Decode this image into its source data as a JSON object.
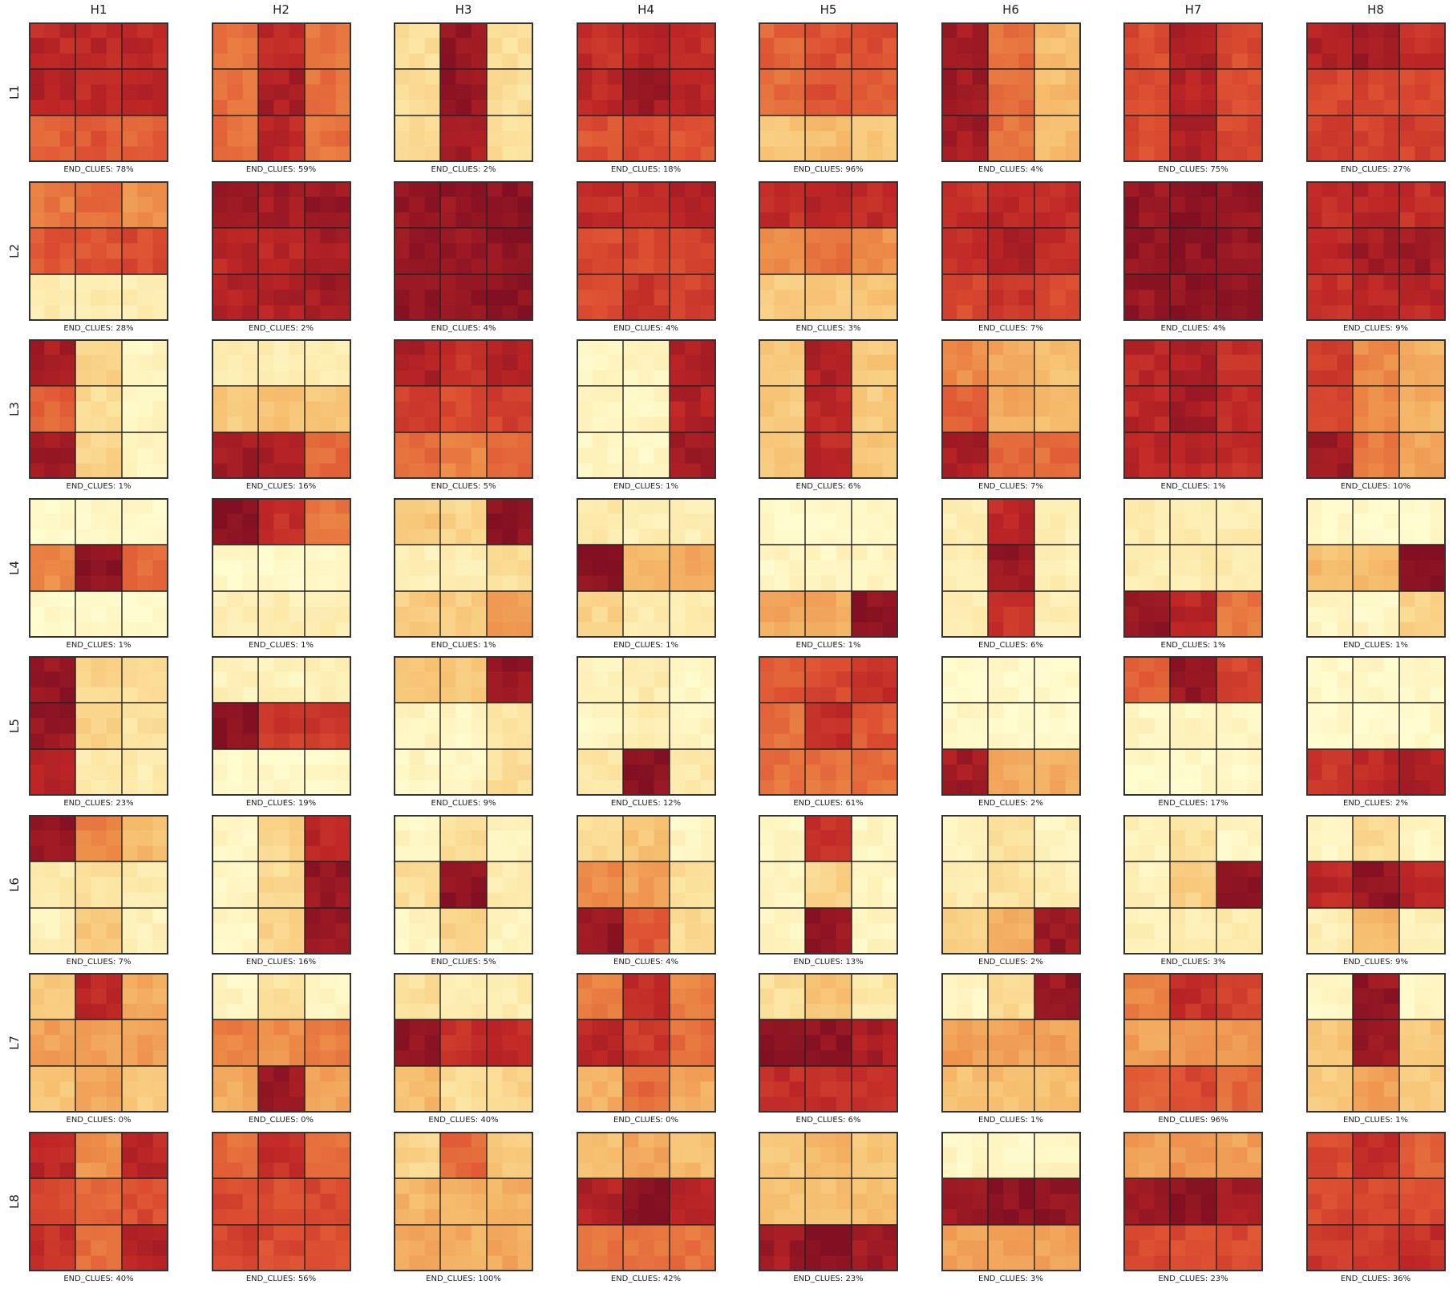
{
  "chart_data": {
    "type": "heatmap",
    "columns": [
      "H1",
      "H2",
      "H3",
      "H4",
      "H5",
      "H6",
      "H7",
      "H8"
    ],
    "rows": [
      "L1",
      "L2",
      "L3",
      "L4",
      "L5",
      "L6",
      "L7",
      "L8"
    ],
    "caption_label": "END_CLUES:",
    "caption_values": [
      [
        "78%",
        "59%",
        "2%",
        "18%",
        "96%",
        "4%",
        "75%",
        "27%"
      ],
      [
        "28%",
        "2%",
        "4%",
        "4%",
        "3%",
        "7%",
        "4%",
        "9%"
      ],
      [
        "1%",
        "16%",
        "5%",
        "1%",
        "6%",
        "7%",
        "1%",
        "10%"
      ],
      [
        "1%",
        "1%",
        "1%",
        "1%",
        "1%",
        "6%",
        "1%",
        "1%"
      ],
      [
        "23%",
        "19%",
        "9%",
        "12%",
        "61%",
        "2%",
        "17%",
        "2%"
      ],
      [
        "7%",
        "16%",
        "5%",
        "4%",
        "13%",
        "2%",
        "3%",
        "9%"
      ],
      [
        "0%",
        "0%",
        "40%",
        "0%",
        "6%",
        "1%",
        "96%",
        "1%"
      ],
      [
        "40%",
        "56%",
        "100%",
        "42%",
        "23%",
        "3%",
        "23%",
        "36%"
      ]
    ],
    "cell_grid": "9x9 cells per panel, divided into 3x3 blocks",
    "colormap": "YlOrRd (light yellow = low, dark red = high)",
    "block_intensity": [
      [
        [
          [
            0.85,
            0.85,
            0.85
          ],
          [
            0.88,
            0.85,
            0.85
          ],
          [
            0.65,
            0.68,
            0.65
          ]
        ],
        [
          [
            0.6,
            0.85,
            0.6
          ],
          [
            0.6,
            0.9,
            0.6
          ],
          [
            0.6,
            0.85,
            0.6
          ]
        ],
        [
          [
            0.2,
            0.95,
            0.2
          ],
          [
            0.2,
            0.95,
            0.2
          ],
          [
            0.2,
            0.9,
            0.2
          ]
        ],
        [
          [
            0.82,
            0.85,
            0.82
          ],
          [
            0.85,
            0.92,
            0.85
          ],
          [
            0.7,
            0.72,
            0.7
          ]
        ],
        [
          [
            0.65,
            0.7,
            0.7
          ],
          [
            0.62,
            0.7,
            0.65
          ],
          [
            0.3,
            0.35,
            0.3
          ]
        ],
        [
          [
            0.92,
            0.6,
            0.35
          ],
          [
            0.92,
            0.6,
            0.35
          ],
          [
            0.92,
            0.6,
            0.35
          ]
        ],
        [
          [
            0.72,
            0.88,
            0.72
          ],
          [
            0.72,
            0.88,
            0.72
          ],
          [
            0.72,
            0.88,
            0.72
          ]
        ],
        [
          [
            0.88,
            0.92,
            0.82
          ],
          [
            0.72,
            0.75,
            0.72
          ],
          [
            0.75,
            0.75,
            0.75
          ]
        ]
      ],
      [
        [
          [
            0.58,
            0.62,
            0.5
          ],
          [
            0.68,
            0.7,
            0.72
          ],
          [
            0.12,
            0.12,
            0.12
          ]
        ],
        [
          [
            0.92,
            0.92,
            0.95
          ],
          [
            0.85,
            0.85,
            0.9
          ],
          [
            0.88,
            0.88,
            0.92
          ]
        ],
        [
          [
            0.95,
            0.95,
            0.97
          ],
          [
            0.95,
            0.95,
            0.97
          ],
          [
            0.95,
            0.95,
            0.97
          ]
        ],
        [
          [
            0.82,
            0.82,
            0.88
          ],
          [
            0.72,
            0.72,
            0.75
          ],
          [
            0.72,
            0.78,
            0.75
          ]
        ],
        [
          [
            0.82,
            0.85,
            0.82
          ],
          [
            0.52,
            0.6,
            0.5
          ],
          [
            0.28,
            0.3,
            0.32
          ]
        ],
        [
          [
            0.82,
            0.85,
            0.82
          ],
          [
            0.82,
            0.88,
            0.82
          ],
          [
            0.72,
            0.8,
            0.72
          ]
        ],
        [
          [
            0.95,
            0.97,
            0.95
          ],
          [
            0.95,
            0.97,
            0.95
          ],
          [
            0.95,
            0.97,
            0.95
          ]
        ],
        [
          [
            0.82,
            0.85,
            0.82
          ],
          [
            0.85,
            0.92,
            0.92
          ],
          [
            0.82,
            0.85,
            0.85
          ]
        ]
      ],
      [
        [
          [
            0.9,
            0.25,
            0.05
          ],
          [
            0.65,
            0.22,
            0.05
          ],
          [
            0.92,
            0.25,
            0.05
          ]
        ],
        [
          [
            0.12,
            0.12,
            0.12
          ],
          [
            0.3,
            0.32,
            0.3
          ],
          [
            0.92,
            0.88,
            0.62
          ]
        ],
        [
          [
            0.88,
            0.82,
            0.88
          ],
          [
            0.75,
            0.72,
            0.75
          ],
          [
            0.62,
            0.55,
            0.62
          ]
        ],
        [
          [
            0.05,
            0.05,
            0.88
          ],
          [
            0.05,
            0.05,
            0.88
          ],
          [
            0.05,
            0.05,
            0.92
          ]
        ],
        [
          [
            0.3,
            0.88,
            0.3
          ],
          [
            0.3,
            0.85,
            0.3
          ],
          [
            0.3,
            0.85,
            0.3
          ]
        ],
        [
          [
            0.52,
            0.42,
            0.35
          ],
          [
            0.65,
            0.42,
            0.35
          ],
          [
            0.9,
            0.62,
            0.62
          ]
        ],
        [
          [
            0.85,
            0.88,
            0.82
          ],
          [
            0.85,
            0.92,
            0.82
          ],
          [
            0.85,
            0.85,
            0.82
          ]
        ],
        [
          [
            0.78,
            0.52,
            0.4
          ],
          [
            0.72,
            0.52,
            0.4
          ],
          [
            0.92,
            0.58,
            0.42
          ]
        ]
      ],
      [
        [
          [
            0.02,
            0.02,
            0.02
          ],
          [
            0.52,
            0.98,
            0.62
          ],
          [
            0.02,
            0.02,
            0.02
          ]
        ],
        [
          [
            0.98,
            0.82,
            0.58
          ],
          [
            0.02,
            0.02,
            0.02
          ],
          [
            0.1,
            0.1,
            0.12
          ]
        ],
        [
          [
            0.3,
            0.25,
            0.98
          ],
          [
            0.1,
            0.1,
            0.2
          ],
          [
            0.28,
            0.28,
            0.45
          ]
        ],
        [
          [
            0.15,
            0.1,
            0.1
          ],
          [
            0.98,
            0.35,
            0.42
          ],
          [
            0.25,
            0.12,
            0.12
          ]
        ],
        [
          [
            0.02,
            0.02,
            0.02
          ],
          [
            0.05,
            0.05,
            0.05
          ],
          [
            0.42,
            0.42,
            0.98
          ]
        ],
        [
          [
            0.1,
            0.85,
            0.1
          ],
          [
            0.1,
            0.95,
            0.1
          ],
          [
            0.1,
            0.8,
            0.1
          ]
        ],
        [
          [
            0.12,
            0.12,
            0.12
          ],
          [
            0.12,
            0.12,
            0.12
          ],
          [
            0.95,
            0.85,
            0.58
          ]
        ],
        [
          [
            0.02,
            0.02,
            0.02
          ],
          [
            0.35,
            0.35,
            0.98
          ],
          [
            0.05,
            0.05,
            0.25
          ]
        ]
      ],
      [
        [
          [
            0.95,
            0.25,
            0.2
          ],
          [
            0.95,
            0.25,
            0.18
          ],
          [
            0.85,
            0.12,
            0.12
          ]
        ],
        [
          [
            0.08,
            0.08,
            0.08
          ],
          [
            0.98,
            0.78,
            0.78
          ],
          [
            0.02,
            0.02,
            0.02
          ]
        ],
        [
          [
            0.3,
            0.3,
            0.95
          ],
          [
            0.05,
            0.05,
            0.15
          ],
          [
            0.05,
            0.05,
            0.2
          ]
        ],
        [
          [
            0.05,
            0.12,
            0.05
          ],
          [
            0.05,
            0.12,
            0.05
          ],
          [
            0.15,
            0.98,
            0.15
          ]
        ],
        [
          [
            0.68,
            0.72,
            0.82
          ],
          [
            0.6,
            0.82,
            0.68
          ],
          [
            0.6,
            0.6,
            0.6
          ]
        ],
        [
          [
            0.02,
            0.02,
            0.02
          ],
          [
            0.02,
            0.02,
            0.02
          ],
          [
            0.92,
            0.42,
            0.4
          ]
        ],
        [
          [
            0.65,
            0.95,
            0.75
          ],
          [
            0.05,
            0.05,
            0.05
          ],
          [
            0.02,
            0.02,
            0.02
          ]
        ],
        [
          [
            0.02,
            0.02,
            0.02
          ],
          [
            0.02,
            0.02,
            0.02
          ],
          [
            0.78,
            0.85,
            0.9
          ]
        ]
      ],
      [
        [
          [
            0.95,
            0.55,
            0.35
          ],
          [
            0.12,
            0.18,
            0.12
          ],
          [
            0.08,
            0.3,
            0.08
          ]
        ],
        [
          [
            0.05,
            0.25,
            0.85
          ],
          [
            0.05,
            0.22,
            0.95
          ],
          [
            0.05,
            0.25,
            0.95
          ]
        ],
        [
          [
            0.05,
            0.2,
            0.05
          ],
          [
            0.2,
            0.98,
            0.12
          ],
          [
            0.05,
            0.25,
            0.05
          ]
        ],
        [
          [
            0.22,
            0.32,
            0.05
          ],
          [
            0.52,
            0.45,
            0.2
          ],
          [
            0.95,
            0.68,
            0.22
          ]
        ],
        [
          [
            0.05,
            0.82,
            0.05
          ],
          [
            0.05,
            0.25,
            0.05
          ],
          [
            0.05,
            0.95,
            0.05
          ]
        ],
        [
          [
            0.05,
            0.18,
            0.05
          ],
          [
            0.12,
            0.18,
            0.1
          ],
          [
            0.25,
            0.42,
            0.95
          ]
        ],
        [
          [
            0.08,
            0.18,
            0.05
          ],
          [
            0.08,
            0.28,
            0.98
          ],
          [
            0.08,
            0.12,
            0.12
          ]
        ],
        [
          [
            0.05,
            0.22,
            0.05
          ],
          [
            0.85,
            0.95,
            0.85
          ],
          [
            0.1,
            0.38,
            0.1
          ]
        ]
      ],
      [
        [
          [
            0.28,
            0.85,
            0.42
          ],
          [
            0.45,
            0.45,
            0.45
          ],
          [
            0.3,
            0.42,
            0.3
          ]
        ],
        [
          [
            0.05,
            0.18,
            0.05
          ],
          [
            0.55,
            0.5,
            0.55
          ],
          [
            0.42,
            0.95,
            0.45
          ]
        ],
        [
          [
            0.2,
            0.12,
            0.12
          ],
          [
            0.95,
            0.82,
            0.85
          ],
          [
            0.35,
            0.2,
            0.25
          ]
        ],
        [
          [
            0.55,
            0.82,
            0.55
          ],
          [
            0.85,
            0.78,
            0.6
          ],
          [
            0.4,
            0.62,
            0.42
          ]
        ],
        [
          [
            0.2,
            0.32,
            0.15
          ],
          [
            0.98,
            0.98,
            0.9
          ],
          [
            0.82,
            0.82,
            0.8
          ]
        ],
        [
          [
            0.05,
            0.22,
            0.95
          ],
          [
            0.45,
            0.45,
            0.45
          ],
          [
            0.35,
            0.35,
            0.35
          ]
        ],
        [
          [
            0.55,
            0.82,
            0.75
          ],
          [
            0.45,
            0.5,
            0.5
          ],
          [
            0.65,
            0.72,
            0.62
          ]
        ],
        [
          [
            0.05,
            0.95,
            0.05
          ],
          [
            0.3,
            0.95,
            0.3
          ],
          [
            0.3,
            0.45,
            0.3
          ]
        ]
      ],
      [
        [
          [
            0.85,
            0.5,
            0.85
          ],
          [
            0.72,
            0.65,
            0.72
          ],
          [
            0.82,
            0.6,
            0.88
          ]
        ],
        [
          [
            0.62,
            0.82,
            0.62
          ],
          [
            0.72,
            0.72,
            0.72
          ],
          [
            0.75,
            0.72,
            0.72
          ]
        ],
        [
          [
            0.25,
            0.62,
            0.3
          ],
          [
            0.38,
            0.4,
            0.4
          ],
          [
            0.42,
            0.4,
            0.42
          ]
        ],
        [
          [
            0.35,
            0.42,
            0.35
          ],
          [
            0.88,
            0.98,
            0.88
          ],
          [
            0.6,
            0.6,
            0.6
          ]
        ],
        [
          [
            0.3,
            0.38,
            0.3
          ],
          [
            0.35,
            0.35,
            0.35
          ],
          [
            0.92,
            0.98,
            0.92
          ]
        ],
        [
          [
            0.05,
            0.05,
            0.05
          ],
          [
            0.95,
            0.98,
            0.95
          ],
          [
            0.45,
            0.45,
            0.45
          ]
        ],
        [
          [
            0.45,
            0.5,
            0.45
          ],
          [
            0.92,
            0.98,
            0.92
          ],
          [
            0.72,
            0.72,
            0.72
          ]
        ],
        [
          [
            0.72,
            0.82,
            0.65
          ],
          [
            0.72,
            0.72,
            0.72
          ],
          [
            0.78,
            0.78,
            0.82
          ]
        ]
      ]
    ]
  }
}
